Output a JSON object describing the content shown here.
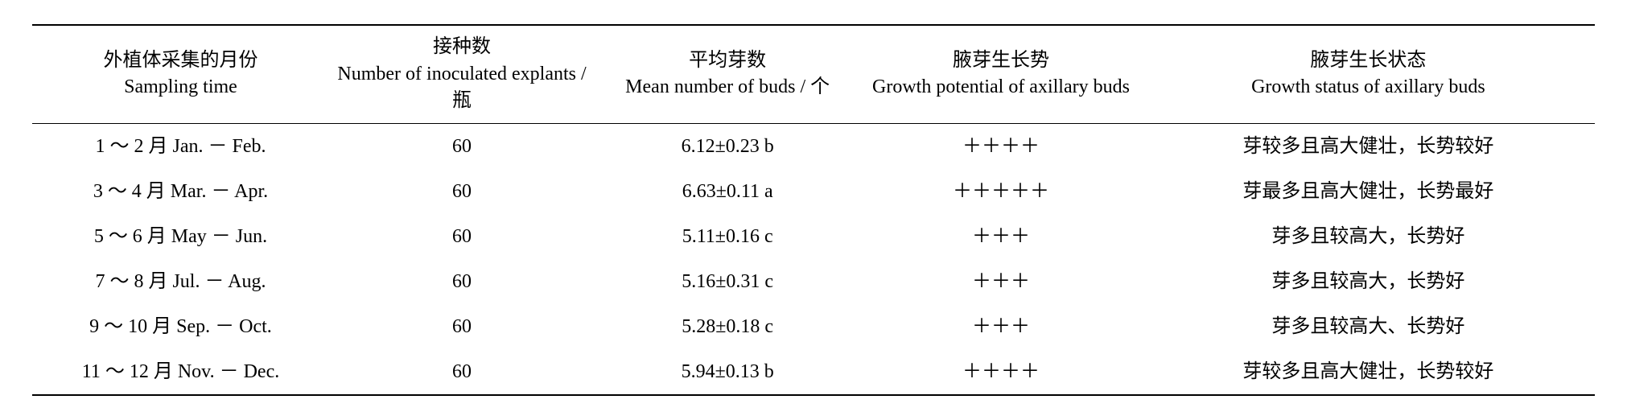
{
  "table": {
    "columns": [
      {
        "cn": "外植体采集的月份",
        "en": "Sampling time",
        "width": "19%"
      },
      {
        "cn": "接种数",
        "en": "Number of inoculated explants / 瓶",
        "width": "17%"
      },
      {
        "cn": "平均芽数",
        "en": "Mean number of buds / 个",
        "width": "17%"
      },
      {
        "cn": "腋芽生长势",
        "en": "Growth potential of axillary buds",
        "width": "18%"
      },
      {
        "cn": "腋芽生长状态",
        "en": "Growth status of axillary buds",
        "width": "29%"
      }
    ],
    "rows": [
      {
        "sampling": "1 ～ 2 月 Jan. － Feb.",
        "number": "60",
        "mean": "6.12±0.23 b",
        "potential": "＋＋＋＋",
        "status": "芽较多且高大健壮，长势较好"
      },
      {
        "sampling": "3 ～ 4 月 Mar. － Apr.",
        "number": "60",
        "mean": "6.63±0.11 a",
        "potential": "＋＋＋＋＋",
        "status": "芽最多且高大健壮，长势最好"
      },
      {
        "sampling": "5 ～ 6 月 May － Jun.",
        "number": "60",
        "mean": "5.11±0.16 c",
        "potential": "＋＋＋",
        "status": "芽多且较高大，长势好"
      },
      {
        "sampling": "7 ～ 8 月 Jul. － Aug.",
        "number": "60",
        "mean": "5.16±0.31 c",
        "potential": "＋＋＋",
        "status": "芽多且较高大，长势好"
      },
      {
        "sampling": "9 ～ 10 月 Sep. － Oct.",
        "number": "60",
        "mean": "5.28±0.18 c",
        "potential": "＋＋＋",
        "status": "芽多且较高大、长势好"
      },
      {
        "sampling": "11 ～ 12 月 Nov. － Dec.",
        "number": "60",
        "mean": "5.94±0.13 b",
        "potential": "＋＋＋＋",
        "status": "芽较多且高大健壮，长势较好"
      }
    ],
    "styling": {
      "border_color": "#000000",
      "background_color": "#ffffff",
      "text_color": "#000000",
      "header_fontsize": 24,
      "cell_fontsize": 24,
      "top_border_width": 2,
      "header_bottom_border_width": 1.5,
      "bottom_border_width": 2,
      "font_family": "Times New Roman, SimSun, serif"
    }
  }
}
